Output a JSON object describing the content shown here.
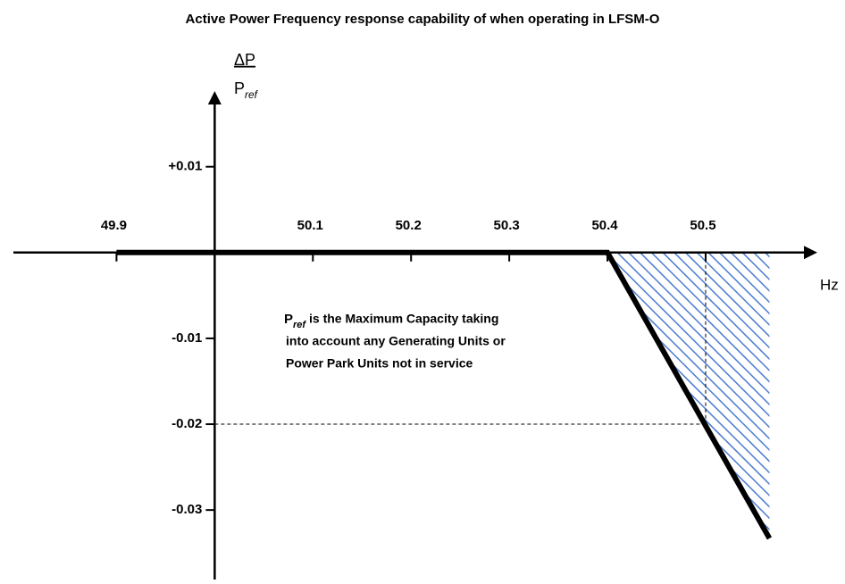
{
  "chart_data": {
    "type": "line",
    "title": "Active Power Frequency response capability of when operating in LFSM-O",
    "ylabel": {
      "numerator": "ΔP",
      "denominator": "P",
      "subscript": "ref"
    },
    "xlabel": "Hz",
    "annotation": {
      "symbol": "P",
      "subscript": "ref",
      "lines": [
        "is the Maximum Capacity taking",
        "into account any Generating Units or",
        "Power Park Units not in service"
      ]
    },
    "series": [
      {
        "color": "#000000",
        "x": [
          49.9,
          50.4,
          50.565
        ],
        "values": [
          0,
          0,
          -0.0333
        ]
      }
    ],
    "hatch_color": "#4a7bd0",
    "reference_point": {
      "x": 50.5,
      "y": -0.02
    },
    "y_axis_position": 50,
    "xlim": [
      49.795,
      50.611
    ],
    "ylim": [
      -0.0381,
      0.0185
    ],
    "xticks": [
      49.9,
      50.1,
      50.2,
      50.3,
      50.4,
      50.5
    ],
    "yticks": [
      {
        "value": 0.01,
        "label": "+0.01"
      },
      -0.01,
      -0.02,
      -0.03
    ]
  }
}
